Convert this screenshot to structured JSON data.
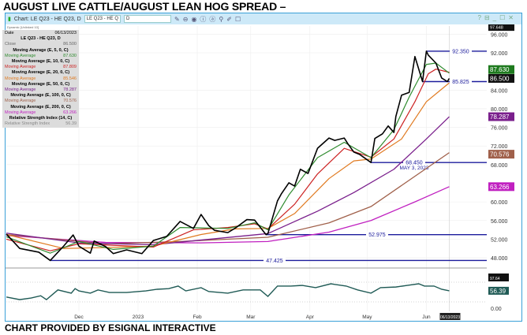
{
  "title": "AUGUST LIVE CATTLE/AUGUST LEAN HOG SPREAD –",
  "footer": "CHART PROVIDED BY ESIGNAL INTERACTIVE",
  "window": {
    "title": "Chart: LE Q23 - HE Q23, D",
    "symbol": "LE Q23 - HE Q",
    "interval": "D",
    "subtitle": "Dynamic [Unlinked 10]",
    "buttons": [
      "?",
      "⊟",
      "_",
      "☐",
      "✕"
    ]
  },
  "legend": {
    "date_label": "Date",
    "date": "06/13/2023",
    "symbol": "LE Q23 - HE Q23, D",
    "close_label": "Close",
    "close": "86.500",
    "studies": [
      {
        "name": "Moving Average (E, 5, 0, C)",
        "label": "Moving Average",
        "value": "87.630",
        "color": "#2e8b2e"
      },
      {
        "name": "Moving Average (E, 10, 0, C)",
        "label": "Moving Average",
        "value": "87.809",
        "color": "#cc2222"
      },
      {
        "name": "Moving Average (E, 20, 0, C)",
        "label": "Moving Average",
        "value": "85.546",
        "color": "#e07a20"
      },
      {
        "name": "Moving Average (E, 50, 0, C)",
        "label": "Moving Average",
        "value": "78.287",
        "color": "#7a1f8c"
      },
      {
        "name": "Moving Average (E, 100, 0, C)",
        "label": "Moving Average",
        "value": "70.576",
        "color": "#a0604a"
      },
      {
        "name": "Moving Average (E, 200, 0, C)",
        "label": "Moving Average",
        "value": "63.266",
        "color": "#c020c0"
      },
      {
        "name": "Relative Strength Index (14, C)",
        "label": "Relative Strength Index",
        "value": "56.39",
        "color": "#888888"
      }
    ]
  },
  "chart_data": {
    "type": "line",
    "ylim": [
      44,
      97.648
    ],
    "y_ticks": [
      "96.000",
      "92.000",
      "84.000",
      "80.000",
      "76.000",
      "72.000",
      "68.000",
      "60.000",
      "56.000",
      "52.000",
      "48.000"
    ],
    "x_ticks": [
      {
        "label": "Dec",
        "date": "2022-12-01"
      },
      {
        "label": "2023",
        "date": "2023-01-01"
      },
      {
        "label": "Feb",
        "date": "2023-02-01"
      },
      {
        "label": "Mar",
        "date": "2023-03-01"
      },
      {
        "label": "Apr",
        "date": "2023-04-01"
      },
      {
        "label": "May",
        "date": "2023-05-01"
      },
      {
        "label": "Jun",
        "date": "2023-06-01"
      }
    ],
    "cursor_date": "06/13/2023",
    "grid": true,
    "series": [
      {
        "key": "close",
        "color": "#000000",
        "width": 1.6,
        "points": [
          [
            "2022-10-24",
            53.1
          ],
          [
            "2022-10-31",
            50.0
          ],
          [
            "2022-11-10",
            49.2
          ],
          [
            "2022-11-16",
            47.425
          ],
          [
            "2022-11-23",
            50.5
          ],
          [
            "2022-11-28",
            52.9
          ],
          [
            "2022-12-01",
            50.5
          ],
          [
            "2022-12-07",
            49.0
          ],
          [
            "2022-12-09",
            51.6
          ],
          [
            "2022-12-15",
            50.4
          ],
          [
            "2022-12-19",
            48.9
          ],
          [
            "2022-12-26",
            49.7
          ],
          [
            "2023-01-03",
            48.9
          ],
          [
            "2023-01-09",
            51.7
          ],
          [
            "2023-01-16",
            52.6
          ],
          [
            "2023-01-23",
            55.8
          ],
          [
            "2023-01-30",
            54.3
          ],
          [
            "2023-02-03",
            57.3
          ],
          [
            "2023-02-07",
            54.9
          ],
          [
            "2023-02-10",
            53.9
          ],
          [
            "2023-02-17",
            53.4
          ],
          [
            "2023-02-21",
            54.4
          ],
          [
            "2023-02-27",
            56.2
          ],
          [
            "2023-03-03",
            56.1
          ],
          [
            "2023-03-09",
            52.975
          ],
          [
            "2023-03-10",
            53.2
          ],
          [
            "2023-03-15",
            60.2
          ],
          [
            "2023-03-17",
            61.7
          ],
          [
            "2023-03-21",
            64.1
          ],
          [
            "2023-03-24",
            63.4
          ],
          [
            "2023-03-27",
            67.0
          ],
          [
            "2023-03-31",
            66.1
          ],
          [
            "2023-04-05",
            71.5
          ],
          [
            "2023-04-11",
            73.7
          ],
          [
            "2023-04-14",
            73.2
          ],
          [
            "2023-04-19",
            73.7
          ],
          [
            "2023-04-21",
            72.4
          ],
          [
            "2023-04-24",
            70.7
          ],
          [
            "2023-04-27",
            70.2
          ],
          [
            "2023-05-03",
            68.45
          ],
          [
            "2023-05-05",
            73.6
          ],
          [
            "2023-05-09",
            74.6
          ],
          [
            "2023-05-12",
            76.3
          ],
          [
            "2023-05-15",
            74.9
          ],
          [
            "2023-05-16",
            78.3
          ],
          [
            "2023-05-19",
            82.9
          ],
          [
            "2023-05-23",
            83.5
          ],
          [
            "2023-05-26",
            91.2
          ],
          [
            "2023-05-30",
            85.825
          ],
          [
            "2023-06-01",
            92.35
          ],
          [
            "2023-06-02",
            91.5
          ],
          [
            "2023-06-06",
            89.8
          ],
          [
            "2023-06-09",
            86.6
          ],
          [
            "2023-06-12",
            85.825
          ],
          [
            "2023-06-13",
            86.5
          ]
        ]
      },
      {
        "key": "ema5",
        "color": "#2e8b2e",
        "width": 1.2,
        "points": [
          [
            "2022-10-24",
            52.5
          ],
          [
            "2022-11-16",
            49.0
          ],
          [
            "2022-12-01",
            51.5
          ],
          [
            "2022-12-19",
            49.8
          ],
          [
            "2023-01-09",
            50.5
          ],
          [
            "2023-01-23",
            54.5
          ],
          [
            "2023-02-17",
            54.3
          ],
          [
            "2023-03-03",
            55.5
          ],
          [
            "2023-03-10",
            54.0
          ],
          [
            "2023-03-21",
            61.5
          ],
          [
            "2023-04-05",
            69.5
          ],
          [
            "2023-04-19",
            72.8
          ],
          [
            "2023-05-03",
            69.5
          ],
          [
            "2023-05-15",
            75.5
          ],
          [
            "2023-05-23",
            82.5
          ],
          [
            "2023-06-01",
            89.5
          ],
          [
            "2023-06-06",
            89.8
          ],
          [
            "2023-06-13",
            87.63
          ]
        ]
      },
      {
        "key": "ema10",
        "color": "#cc2222",
        "width": 1.2,
        "points": [
          [
            "2022-10-24",
            52.0
          ],
          [
            "2022-11-16",
            49.5
          ],
          [
            "2022-12-01",
            51.0
          ],
          [
            "2023-01-09",
            50.3
          ],
          [
            "2023-01-30",
            54.0
          ],
          [
            "2023-02-17",
            54.5
          ],
          [
            "2023-03-03",
            55.3
          ],
          [
            "2023-03-10",
            54.2
          ],
          [
            "2023-03-24",
            59.5
          ],
          [
            "2023-04-05",
            66.0
          ],
          [
            "2023-04-19",
            71.5
          ],
          [
            "2023-05-03",
            69.6
          ],
          [
            "2023-05-15",
            73.5
          ],
          [
            "2023-05-26",
            81.5
          ],
          [
            "2023-06-02",
            87.5
          ],
          [
            "2023-06-06",
            88.5
          ],
          [
            "2023-06-13",
            87.809
          ]
        ]
      },
      {
        "key": "ema20",
        "color": "#e07a20",
        "width": 1.2,
        "points": [
          [
            "2022-10-24",
            53.0
          ],
          [
            "2022-11-23",
            50.0
          ],
          [
            "2022-12-15",
            50.2
          ],
          [
            "2023-01-09",
            50.5
          ],
          [
            "2023-02-03",
            53.0
          ],
          [
            "2023-02-21",
            54.2
          ],
          [
            "2023-03-10",
            54.3
          ],
          [
            "2023-03-24",
            57.5
          ],
          [
            "2023-04-11",
            65.0
          ],
          [
            "2023-04-24",
            68.8
          ],
          [
            "2023-05-03",
            69.2
          ],
          [
            "2023-05-19",
            73.5
          ],
          [
            "2023-06-01",
            81.5
          ],
          [
            "2023-06-13",
            85.546
          ]
        ]
      },
      {
        "key": "ema50",
        "color": "#7a1f8c",
        "width": 1.3,
        "points": [
          [
            "2022-10-24",
            53.3
          ],
          [
            "2022-12-01",
            51.2
          ],
          [
            "2023-01-09",
            50.8
          ],
          [
            "2023-02-03",
            51.8
          ],
          [
            "2023-03-10",
            53.2
          ],
          [
            "2023-04-05",
            58.0
          ],
          [
            "2023-04-24",
            62.0
          ],
          [
            "2023-05-15",
            67.0
          ],
          [
            "2023-06-01",
            73.5
          ],
          [
            "2023-06-13",
            78.287
          ]
        ]
      },
      {
        "key": "ema100",
        "color": "#a0604a",
        "width": 1.3,
        "points": [
          [
            "2022-10-24",
            53.0
          ],
          [
            "2022-12-15",
            51.0
          ],
          [
            "2023-01-23",
            51.5
          ],
          [
            "2023-03-10",
            52.4
          ],
          [
            "2023-04-11",
            55.5
          ],
          [
            "2023-05-03",
            59.0
          ],
          [
            "2023-05-26",
            65.5
          ],
          [
            "2023-06-13",
            70.576
          ]
        ]
      },
      {
        "key": "ema200",
        "color": "#c020c0",
        "width": 1.3,
        "points": [
          [
            "2022-10-24",
            52.8
          ],
          [
            "2022-12-15",
            51.3
          ],
          [
            "2023-02-03",
            51.2
          ],
          [
            "2023-03-10",
            51.5
          ],
          [
            "2023-04-11",
            53.5
          ],
          [
            "2023-05-03",
            56.0
          ],
          [
            "2023-05-26",
            60.0
          ],
          [
            "2023-06-13",
            63.266
          ]
        ]
      }
    ],
    "levels": [
      {
        "value": 92.35,
        "label": "92.350",
        "from": "2023-06-01"
      },
      {
        "value": 85.825,
        "label": "85.825",
        "from": "2023-05-30"
      },
      {
        "value": 68.45,
        "label": "68.450",
        "note": "MAY 3, 2023",
        "from": "2023-05-03"
      },
      {
        "value": 52.975,
        "label": "52.975",
        "from": "2023-03-09"
      },
      {
        "value": 47.425,
        "label": "47.425",
        "from": "2022-11-16"
      }
    ],
    "level_color": "#1c1c9c",
    "price_tags": [
      {
        "label": "97.648",
        "value": 97.648,
        "color": "#111111"
      },
      {
        "label": "87.630",
        "value": 87.9,
        "color": "#1e7a1e"
      },
      {
        "label": "86.500",
        "value": 86.5,
        "color": "#111111"
      },
      {
        "label": "78.287",
        "value": 78.287,
        "color": "#7a1f8c"
      },
      {
        "label": "70.576",
        "value": 70.576,
        "color": "#a0604a"
      },
      {
        "label": "63.266",
        "value": 63.266,
        "color": "#c020c0"
      }
    ],
    "rsi": {
      "color": "#1f5a55",
      "ylim": [
        0,
        100
      ],
      "y_tick": "0.00",
      "tags": [
        {
          "label": "97.64",
          "value": 97.64,
          "color": "#111111"
        },
        {
          "label": "56.39",
          "value": 56.39,
          "color": "#1f5a55"
        }
      ],
      "points": [
        [
          "2022-10-24",
          37
        ],
        [
          "2022-10-31",
          29
        ],
        [
          "2022-11-06",
          34
        ],
        [
          "2022-11-11",
          41
        ],
        [
          "2022-11-14",
          29
        ],
        [
          "2022-11-20",
          59
        ],
        [
          "2022-11-27",
          49
        ],
        [
          "2022-11-29",
          63
        ],
        [
          "2022-12-01",
          56
        ],
        [
          "2022-12-07",
          49
        ],
        [
          "2022-12-11",
          59
        ],
        [
          "2022-12-17",
          51
        ],
        [
          "2022-12-26",
          51
        ],
        [
          "2023-01-05",
          56
        ],
        [
          "2023-01-11",
          61
        ],
        [
          "2023-01-17",
          63
        ],
        [
          "2023-01-22",
          71
        ],
        [
          "2023-01-26",
          56
        ],
        [
          "2023-02-03",
          66
        ],
        [
          "2023-02-07",
          54
        ],
        [
          "2023-02-17",
          49
        ],
        [
          "2023-02-25",
          59
        ],
        [
          "2023-03-06",
          59
        ],
        [
          "2023-03-10",
          39
        ],
        [
          "2023-03-15",
          71
        ],
        [
          "2023-03-22",
          71
        ],
        [
          "2023-03-28",
          73
        ],
        [
          "2023-04-04",
          66
        ],
        [
          "2023-04-12",
          78
        ],
        [
          "2023-04-14",
          76
        ],
        [
          "2023-04-20",
          71
        ],
        [
          "2023-04-26",
          59
        ],
        [
          "2023-05-03",
          49
        ],
        [
          "2023-05-08",
          66
        ],
        [
          "2023-05-16",
          68
        ],
        [
          "2023-05-22",
          73
        ],
        [
          "2023-05-28",
          78
        ],
        [
          "2023-05-31",
          71
        ],
        [
          "2023-06-05",
          71
        ],
        [
          "2023-06-09",
          61
        ],
        [
          "2023-06-13",
          56.39
        ]
      ]
    }
  }
}
